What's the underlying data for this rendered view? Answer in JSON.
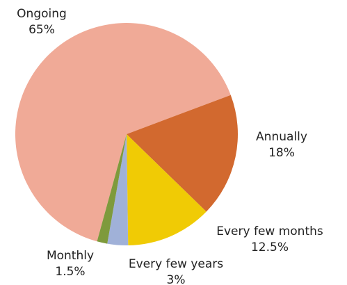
{
  "chart_data": {
    "type": "pie",
    "categories": [
      "Ongoing",
      "Annually",
      "Every few months",
      "Every few years",
      "Monthly"
    ],
    "values": [
      65,
      18,
      12.5,
      3,
      1.5
    ],
    "value_labels": [
      "65%",
      "18%",
      "12.5%",
      "3%",
      "1.5%"
    ],
    "colors": [
      "#f0aa97",
      "#d2692f",
      "#f0cb05",
      "#a0b1d8",
      "#7e9a3c"
    ]
  }
}
